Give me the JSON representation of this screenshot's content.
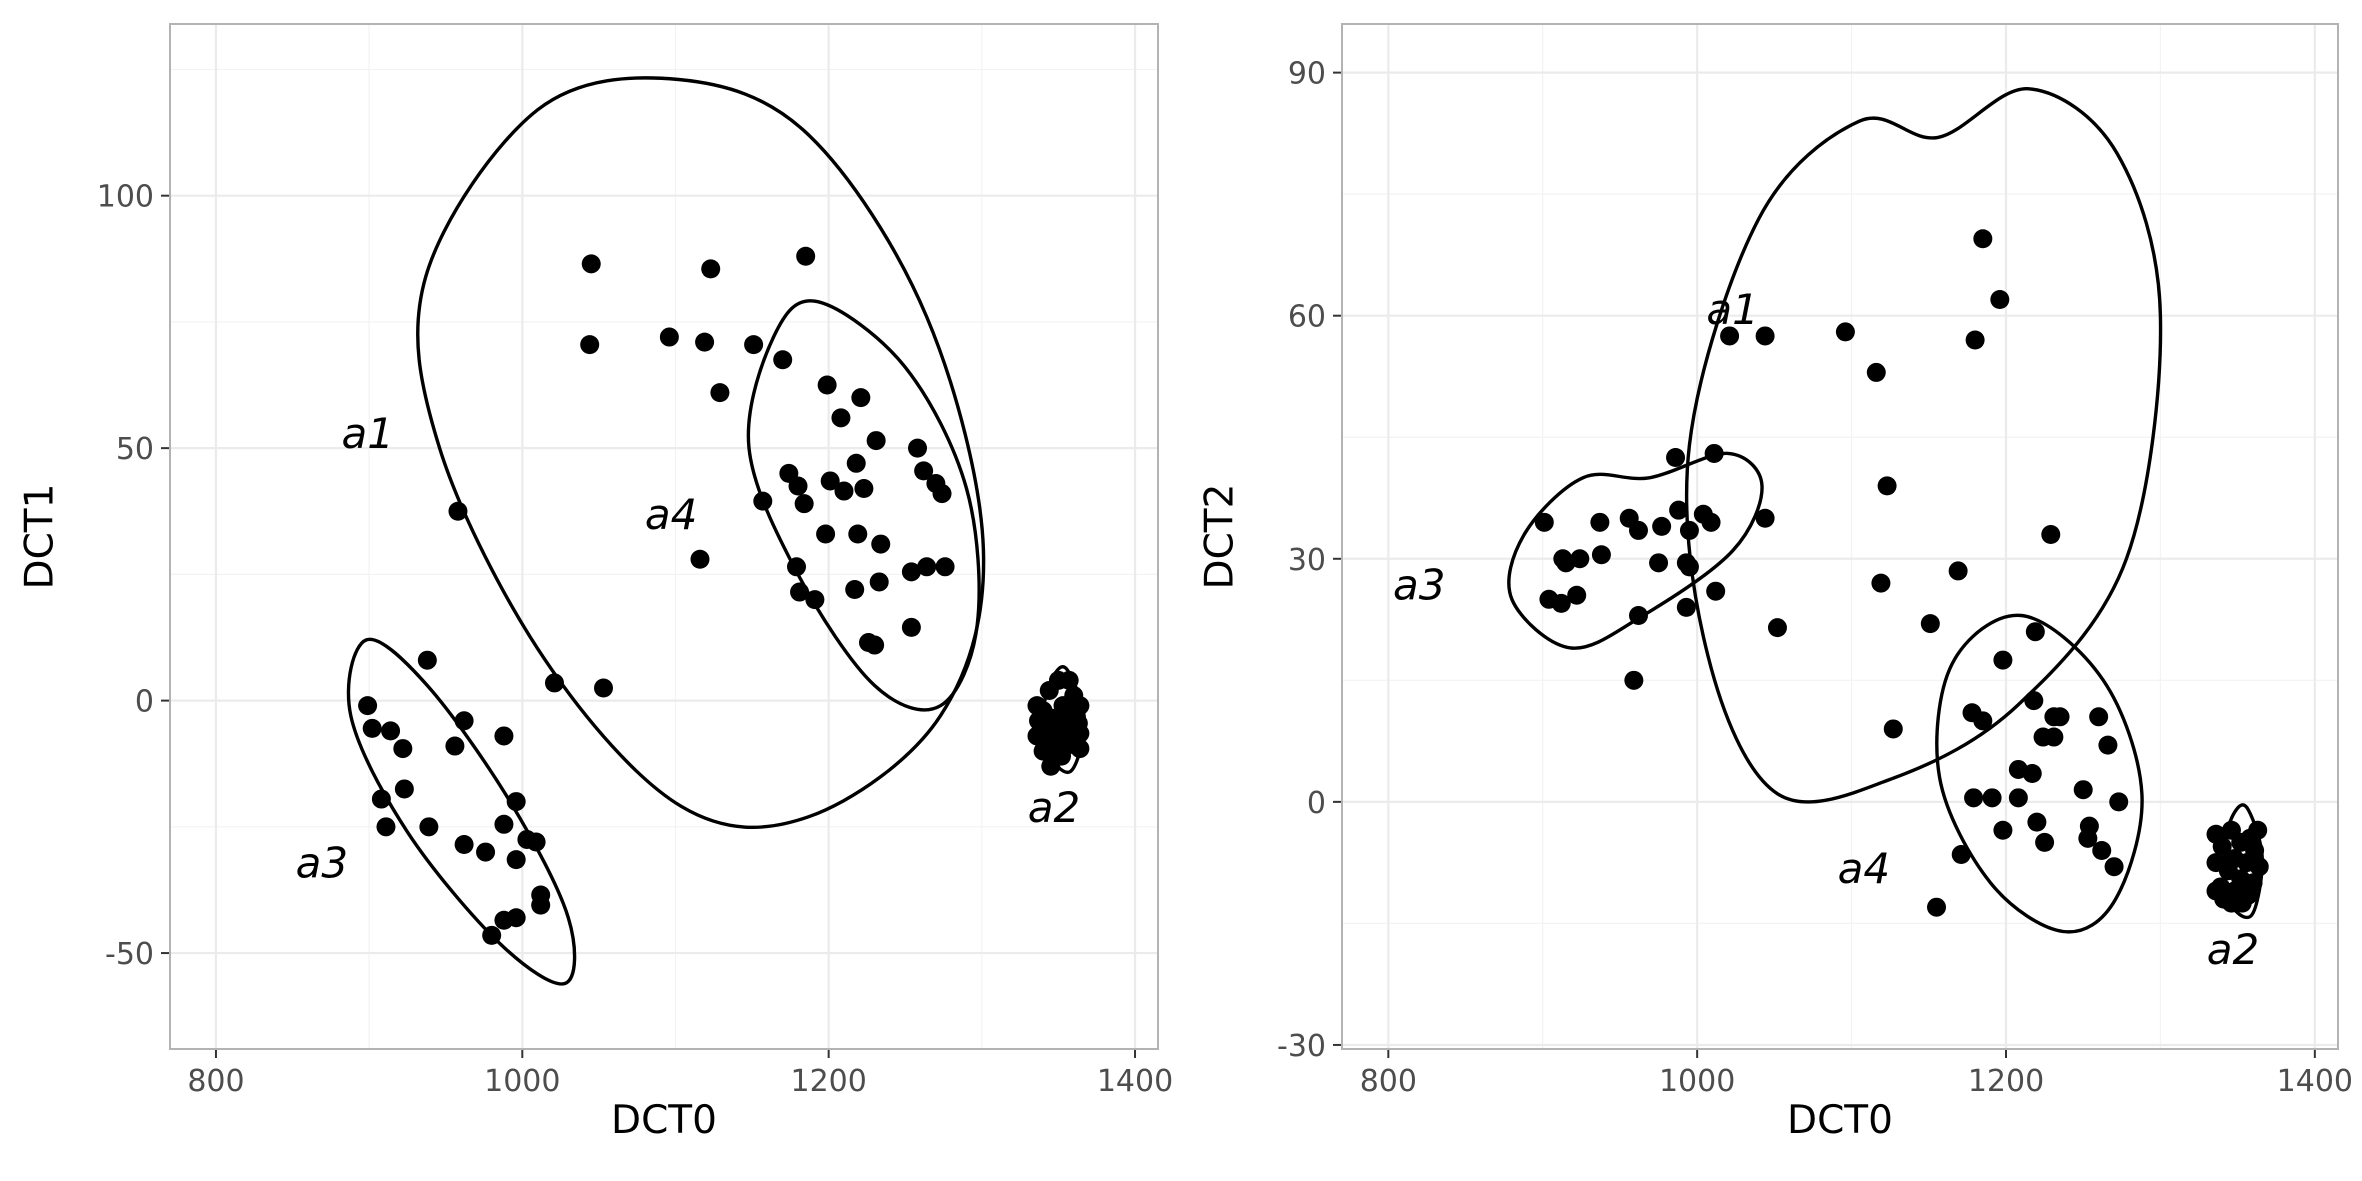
{
  "chart_data": [
    {
      "type": "scatter",
      "xlabel": "DCT0",
      "ylabel": "DCT1",
      "xlim": [
        770,
        1415
      ],
      "ylim": [
        -69,
        134
      ],
      "xticks": [
        800,
        1000,
        1200,
        1400
      ],
      "yticks": [
        -50,
        0,
        50,
        100
      ],
      "grid": true,
      "points": [
        [
          1045,
          86.5
        ],
        [
          1044,
          70.5
        ],
        [
          1123,
          85.5
        ],
        [
          1185,
          88
        ],
        [
          1096,
          72
        ],
        [
          1119,
          71
        ],
        [
          1129,
          61
        ],
        [
          1151,
          70.5
        ],
        [
          1170,
          67.5
        ],
        [
          1199,
          62.5
        ],
        [
          1221,
          60
        ],
        [
          1208,
          56
        ],
        [
          1231,
          51.5
        ],
        [
          1258,
          50
        ],
        [
          1218,
          47
        ],
        [
          1174,
          45
        ],
        [
          1180,
          42.5
        ],
        [
          1262,
          45.5
        ],
        [
          1270,
          43
        ],
        [
          1274,
          41
        ],
        [
          1201,
          43.5
        ],
        [
          1210,
          41.5
        ],
        [
          1223,
          42
        ],
        [
          1157,
          39.5
        ],
        [
          1184,
          39
        ],
        [
          1219,
          33
        ],
        [
          1198,
          33
        ],
        [
          1234,
          31
        ],
        [
          1179,
          26.5
        ],
        [
          1264,
          26.5
        ],
        [
          1276,
          26.5
        ],
        [
          1254,
          25.5
        ],
        [
          1233,
          23.5
        ],
        [
          1217,
          22
        ],
        [
          1181,
          21.5
        ],
        [
          1191,
          20
        ],
        [
          1254,
          14.5
        ],
        [
          1226,
          11.5
        ],
        [
          1230,
          11
        ],
        [
          958,
          37.5
        ],
        [
          1116,
          28
        ],
        [
          1021,
          3.5
        ],
        [
          1053,
          2.5
        ],
        [
          938,
          8
        ],
        [
          899,
          -1
        ],
        [
          962,
          -4
        ],
        [
          902,
          -5.5
        ],
        [
          914,
          -6
        ],
        [
          988,
          -7
        ],
        [
          922,
          -9.5
        ],
        [
          956,
          -9
        ],
        [
          923,
          -17.5
        ],
        [
          908,
          -19.5
        ],
        [
          996,
          -20
        ],
        [
          911,
          -25
        ],
        [
          939,
          -25
        ],
        [
          988,
          -24.5
        ],
        [
          1003,
          -27.5
        ],
        [
          1009,
          -28
        ],
        [
          962,
          -28.5
        ],
        [
          976,
          -30
        ],
        [
          996,
          -31.5
        ],
        [
          1012,
          -38.5
        ],
        [
          1012,
          -40.5
        ],
        [
          996,
          -43
        ],
        [
          988,
          -43.5
        ],
        [
          980,
          -46.5
        ],
        [
          1350,
          4
        ],
        [
          1357,
          4
        ],
        [
          1344,
          2
        ],
        [
          1360,
          1
        ],
        [
          1336,
          -1
        ],
        [
          1353,
          -1
        ],
        [
          1364,
          -1
        ],
        [
          1340,
          -2
        ],
        [
          1356,
          -2.5
        ],
        [
          1346,
          -3.5
        ],
        [
          1361,
          -3
        ],
        [
          1337,
          -4
        ],
        [
          1351,
          -4.5
        ],
        [
          1363,
          -4.5
        ],
        [
          1342,
          -5.5
        ],
        [
          1358,
          -6
        ],
        [
          1347,
          -6
        ],
        [
          1364,
          -6.5
        ],
        [
          1336,
          -7
        ],
        [
          1352,
          -7.5
        ],
        [
          1361,
          -8
        ],
        [
          1343,
          -8.5
        ],
        [
          1355,
          -9
        ],
        [
          1364,
          -9.5
        ],
        [
          1348,
          -10
        ],
        [
          1340,
          -10
        ],
        [
          1352,
          -11
        ],
        [
          1345,
          -13
        ]
      ],
      "ellipses": [
        {
          "label": "a1",
          "path": [
            [
              1102,
              123
            ],
            [
              1187,
              112
            ],
            [
              1264,
              76
            ],
            [
              1301,
              30
            ],
            [
              1273,
              -3
            ],
            [
              1187,
              -23
            ],
            [
              1104,
              -21
            ],
            [
              1015,
              8
            ],
            [
              946,
              50
            ],
            [
              937,
              84
            ],
            [
              1010,
              117
            ]
          ]
        },
        {
          "label": "a4",
          "path": [
            [
              1193,
              79
            ],
            [
              1250,
              66
            ],
            [
              1290,
              42
            ],
            [
              1297,
              15
            ],
            [
              1273,
              -1
            ],
            [
              1230,
              3
            ],
            [
              1180,
              25
            ],
            [
              1148,
              50
            ],
            [
              1164,
              72
            ]
          ]
        },
        {
          "label": "a3",
          "path": [
            [
              898,
              12
            ],
            [
              938,
              3
            ],
            [
              992,
              -20
            ],
            [
              1030,
              -43
            ],
            [
              1028,
              -56
            ],
            [
              985,
              -48
            ],
            [
              925,
              -26
            ],
            [
              888,
              -3
            ]
          ]
        },
        {
          "label": "a2",
          "path": [
            [
              1356,
              6
            ],
            [
              1367,
              -4
            ],
            [
              1358,
              -14
            ],
            [
              1342,
              -10
            ],
            [
              1340,
              -2
            ],
            [
              1347,
              5
            ]
          ]
        }
      ],
      "annotations": [
        {
          "text": "a1",
          "x": 882,
          "y": 50
        },
        {
          "text": "a4",
          "x": 1080,
          "y": 34
        },
        {
          "text": "a3",
          "x": 852,
          "y": -35
        },
        {
          "text": "a2",
          "x": 1330,
          "y": -24
        }
      ]
    },
    {
      "type": "scatter",
      "xlabel": "DCT0",
      "ylabel": "DCT2",
      "xlim": [
        770,
        1415
      ],
      "ylim": [
        -30.5,
        96
      ],
      "xticks": [
        800,
        1000,
        1200,
        1400
      ],
      "yticks": [
        -30,
        0,
        30,
        60,
        90
      ],
      "grid": true,
      "points": [
        [
          1185,
          69.5
        ],
        [
          1196,
          62
        ],
        [
          1021,
          57.5
        ],
        [
          1044,
          57.5
        ],
        [
          1096,
          58
        ],
        [
          1180,
          57
        ],
        [
          1116,
          53
        ],
        [
          1011,
          43
        ],
        [
          986,
          42.5
        ],
        [
          1123,
          39
        ],
        [
          901,
          34.5
        ],
        [
          937,
          34.5
        ],
        [
          956,
          35
        ],
        [
          977,
          34
        ],
        [
          988,
          36
        ],
        [
          1004,
          35.5
        ],
        [
          1009,
          34.5
        ],
        [
          1044,
          35
        ],
        [
          962,
          33.5
        ],
        [
          995,
          33.5
        ],
        [
          1229,
          33
        ],
        [
          913,
          30
        ],
        [
          924,
          30
        ],
        [
          938,
          30.5
        ],
        [
          993,
          29.5
        ],
        [
          975,
          29.5
        ],
        [
          995,
          29
        ],
        [
          915,
          29.5
        ],
        [
          1169,
          28.5
        ],
        [
          1119,
          27
        ],
        [
          1012,
          26
        ],
        [
          922,
          25.5
        ],
        [
          904,
          25
        ],
        [
          912,
          24.5
        ],
        [
          993,
          24
        ],
        [
          962,
          23
        ],
        [
          1151,
          22
        ],
        [
          1052,
          21.5
        ],
        [
          1219,
          21
        ],
        [
          1198,
          17.5
        ],
        [
          959,
          15
        ],
        [
          1218,
          12.5
        ],
        [
          1178,
          11
        ],
        [
          1231,
          10.5
        ],
        [
          1235,
          10.5
        ],
        [
          1260,
          10.5
        ],
        [
          1185,
          10
        ],
        [
          1127,
          9
        ],
        [
          1224,
          8
        ],
        [
          1231,
          8
        ],
        [
          1266,
          7
        ],
        [
          1208,
          4
        ],
        [
          1217,
          3.5
        ],
        [
          1250,
          1.5
        ],
        [
          1179,
          0.5
        ],
        [
          1191,
          0.5
        ],
        [
          1208,
          0.5
        ],
        [
          1273,
          0
        ],
        [
          1220,
          -2.5
        ],
        [
          1254,
          -3
        ],
        [
          1198,
          -3.5
        ],
        [
          1253,
          -4.5
        ],
        [
          1225,
          -5
        ],
        [
          1262,
          -6
        ],
        [
          1171,
          -6.5
        ],
        [
          1270,
          -8
        ],
        [
          1155,
          -13
        ],
        [
          1336,
          -4
        ],
        [
          1346,
          -3.5
        ],
        [
          1358,
          -4.5
        ],
        [
          1363,
          -3.5
        ],
        [
          1340,
          -5.5
        ],
        [
          1352,
          -5
        ],
        [
          1361,
          -6
        ],
        [
          1336,
          -7.5
        ],
        [
          1348,
          -7
        ],
        [
          1356,
          -7.5
        ],
        [
          1364,
          -8
        ],
        [
          1344,
          -8.5
        ],
        [
          1352,
          -9.5
        ],
        [
          1360,
          -10
        ],
        [
          1339,
          -10.5
        ],
        [
          1348,
          -11
        ],
        [
          1357,
          -11.5
        ],
        [
          1341,
          -12
        ],
        [
          1353,
          -12.5
        ],
        [
          1336,
          -11
        ],
        [
          1346,
          -12.5
        ]
      ],
      "ellipses": [
        {
          "label": "a1",
          "path": [
            [
              1156,
              82
            ],
            [
              1215,
              88
            ],
            [
              1272,
              80
            ],
            [
              1300,
              60
            ],
            [
              1278,
              30
            ],
            [
              1208,
              12
            ],
            [
              1128,
              3
            ],
            [
              1052,
              1
            ],
            [
              1007,
              18
            ],
            [
              995,
              44
            ],
            [
              1040,
              72
            ],
            [
              1105,
              84
            ]
          ]
        },
        {
          "label": "a3",
          "path": [
            [
              969,
              40
            ],
            [
              1020,
              43
            ],
            [
              1042,
              39
            ],
            [
              1023,
              31
            ],
            [
              965,
              23
            ],
            [
              918,
              19
            ],
            [
              880,
              25
            ],
            [
              888,
              33
            ],
            [
              926,
              40
            ]
          ]
        },
        {
          "label": "a4",
          "path": [
            [
              1210,
              23
            ],
            [
              1263,
              15
            ],
            [
              1288,
              1
            ],
            [
              1271,
              -12
            ],
            [
              1237,
              -16
            ],
            [
              1190,
              -10
            ],
            [
              1157,
              3
            ],
            [
              1165,
              17
            ]
          ]
        },
        {
          "label": "a2",
          "path": [
            [
              1357,
              -1
            ],
            [
              1366,
              -7
            ],
            [
              1359,
              -14
            ],
            [
              1344,
              -12
            ],
            [
              1342,
              -5
            ],
            [
              1349,
              -1
            ]
          ]
        }
      ],
      "annotations": [
        {
          "text": "a1",
          "x": 1006,
          "y": 59
        },
        {
          "text": "a3",
          "x": 803,
          "y": 25
        },
        {
          "text": "a4",
          "x": 1091,
          "y": -10
        },
        {
          "text": "a2",
          "x": 1330,
          "y": -20
        }
      ]
    }
  ]
}
